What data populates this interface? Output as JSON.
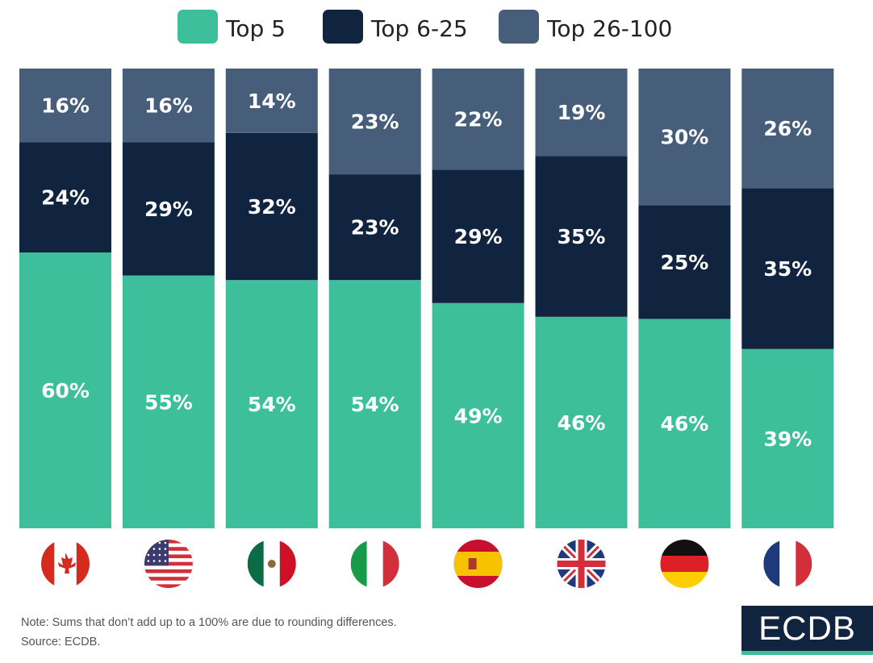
{
  "chart_data": {
    "type": "bar",
    "stacked": true,
    "normalized": true,
    "flag_icons": [
      "canada-flag",
      "usa-flag",
      "mexico-flag",
      "italy-flag",
      "spain-flag",
      "uk-flag",
      "germany-flag",
      "france-flag"
    ],
    "series": [
      {
        "name": "Top 5",
        "color": "#3dbf9c",
        "values": [
          60,
          55,
          54,
          54,
          49,
          46,
          46,
          39
        ]
      },
      {
        "name": "Top 6-25",
        "color": "#10243f",
        "values": [
          24,
          29,
          32,
          23,
          29,
          35,
          25,
          35
        ]
      },
      {
        "name": "Top 26-100",
        "color": "#475e7b",
        "values": [
          16,
          16,
          14,
          23,
          22,
          19,
          30,
          26
        ]
      }
    ],
    "value_suffix": "%",
    "legend_position": "top-center",
    "ylim": [
      0,
      100
    ]
  },
  "footer": {
    "note": "Note: Sums that don’t add up to a 100% are due to rounding differences.",
    "source": "Source: ECDB."
  },
  "logo": {
    "text": "ECDB"
  }
}
